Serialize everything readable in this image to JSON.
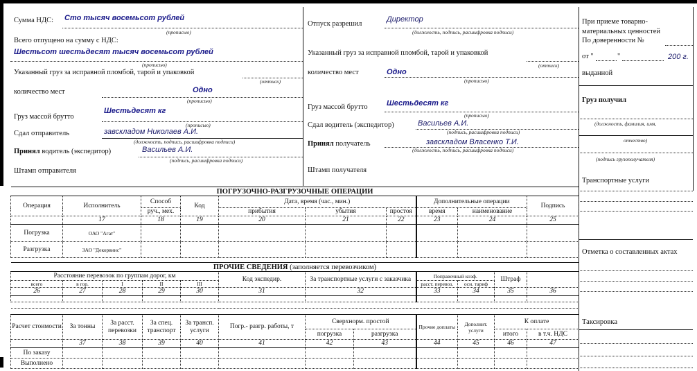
{
  "left": {
    "vat_label": "Сумма НДС:",
    "vat_value": "Сто тысяч восемьсот рублей",
    "in_words": "(прописью)",
    "total_label": "Всего отпущено на сумму с НДС:",
    "total_value": "Шестьсот шестьдесят тысяч восемьсот рублей",
    "seal_label": "Указанный груз за исправной пломбой, тарой и упаковкой",
    "imprint": "(оттиск)",
    "places_label": "количество мест",
    "places_value": "Одно",
    "gross_label": "Груз массой брутто",
    "gross_value": "Шестьдесят кг",
    "shipper_label": "Сдал отправитель",
    "shipper_value": "завскладом Николаев А.И.",
    "position_sig": "(должность, подпись, расшифровка подписи)",
    "driver_bold": "Принял",
    "driver_label": " водитель (экспедитор)",
    "driver_value": "Васильев А.И.",
    "sig": "(подпись, расшифровка подписи)",
    "stamp": "Штамп отправителя"
  },
  "middle": {
    "released_label": "Отпуск разрешил",
    "released_value": "Директор",
    "position_sig": "(должность, подпись, расшифровка подписи)",
    "seal_label": "Указанный груз за исправной пломбой, тарой и упаковкой",
    "imprint": "(оттиск)",
    "places_label": "количество мест",
    "places_value": "Одно",
    "in_words": "(прописью)",
    "gross_label": "Груз массой брутто",
    "gross_value": "Шестьдесят кг",
    "driver_label": "Сдал водитель (экспедитор)",
    "driver_value": "Васильев А.И.",
    "sig": "(подпись, расшифровка подписи)",
    "receiver_bold": "Принял",
    "receiver_label": " получатель",
    "receiver_value": "завскладом Власенко Т.И.",
    "stamp": "Штамп получателя"
  },
  "right": {
    "line1": "При приеме товарно-",
    "line2": "материальных ценностей",
    "power_label": "По доверенности №",
    "from_label": "от \"",
    "quote": "\"",
    "year": "200 г.",
    "issued": "выданной",
    "received": "Груз получил",
    "cap1": "(должность, фамилия, имя,",
    "cap2": "отчество)",
    "cap3": "(подпись грузополучателя)",
    "transport": "Транспортные услуги",
    "acts": "Отметка о составленных актах",
    "taxing": "Таксировка"
  },
  "loading": {
    "title": "ПОГРУЗОЧНО-РАЗГРУЗОЧНЫЕ ОПЕРАЦИИ",
    "h": [
      "Операция",
      "Исполнитель",
      "Способ",
      "Код",
      "Дата, время (час., мин.)",
      "Дополнительные операции",
      "Подпись"
    ],
    "sub": [
      "руч., мех.",
      "прибытия",
      "убытия",
      "простоя",
      "время",
      "наименование"
    ],
    "nums": [
      "17",
      "18",
      "19",
      "20",
      "21",
      "22",
      "23",
      "24",
      "25"
    ],
    "rows": [
      {
        "op": "Погрузка",
        "exec": "ОАО \"Агат\""
      },
      {
        "op": "Разгрузка",
        "exec": "ЗАО \"Декорвинс\""
      }
    ]
  },
  "other": {
    "title": "ПРОЧИЕ СВЕДЕНИЯ",
    "title_note": " (заполняется перевозчиком)",
    "h": [
      "Расстояние перевозок по группам дорог, км",
      "Код экспедир.",
      "За транспортные услуги с заказчика",
      "Поправочный коэф.",
      "Штраф"
    ],
    "sub": [
      "всего",
      "в гор.",
      "I",
      "II",
      "III",
      "расст. перевоз.",
      "осн. тариф"
    ],
    "nums": [
      "26",
      "27",
      "28",
      "29",
      "30",
      "31",
      "32",
      "33",
      "34",
      "35",
      "36"
    ]
  },
  "cost": {
    "h": [
      "Расчет стоимости",
      "За тонны",
      "За расст. перевозки",
      "За спец. транспорт",
      "За трансп. услуги",
      "Погр.- разгр. работы, т",
      "Сверхнорм. простой",
      "Прочие доплаты",
      "Дополнит. услуги",
      "К оплате"
    ],
    "sub": [
      "погрузка",
      "разгрузка",
      "итого",
      "в т.ч. НДС"
    ],
    "nums": [
      "37",
      "38",
      "39",
      "40",
      "41",
      "42",
      "43",
      "44",
      "45",
      "46",
      "47"
    ],
    "rows": [
      "По заказу",
      "Выполнено"
    ]
  },
  "colors": {
    "handwritten": "#1a1a8a",
    "border": "#111111"
  }
}
